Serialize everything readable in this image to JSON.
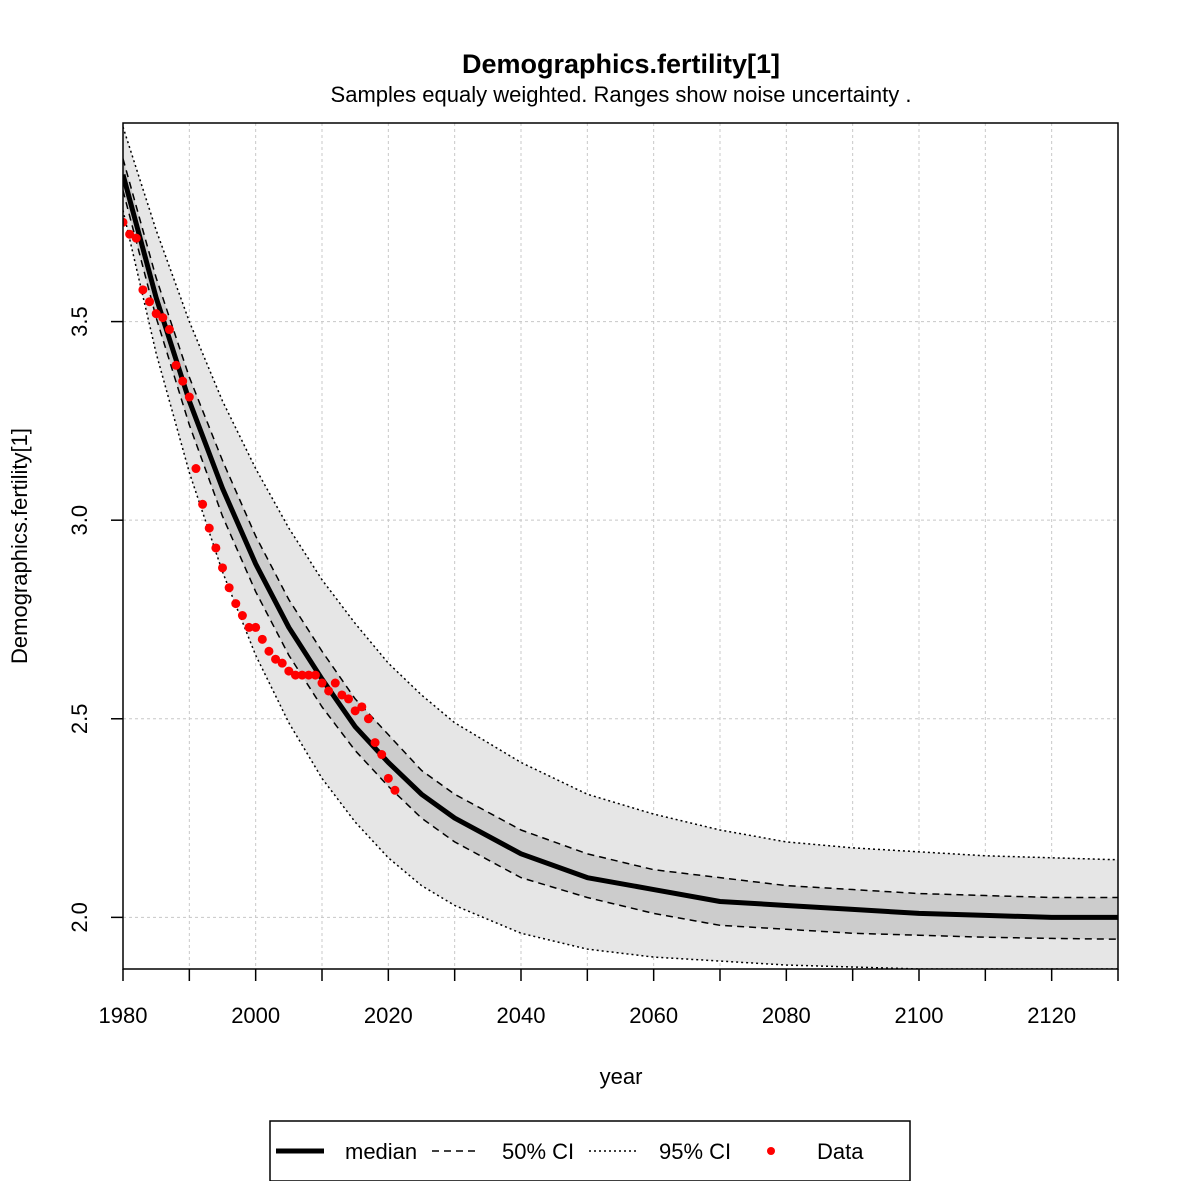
{
  "chart_data": {
    "type": "line",
    "title": "Demographics.fertility[1]",
    "subtitle": "Samples equaly weighted. Ranges show  noise uncertainty .",
    "xlabel": "year",
    "ylabel": "Demographics.fertility[1]",
    "xlim": [
      1980,
      2130
    ],
    "ylim": [
      1.87,
      4.0
    ],
    "x_ticks": [
      1980,
      2000,
      2020,
      2040,
      2060,
      2080,
      2100,
      2120
    ],
    "x_tick_labels": [
      "1980",
      "2000",
      "2020",
      "2040",
      "2060",
      "2080",
      "2100",
      "2120"
    ],
    "x_minor_ticks": [
      1990,
      2010,
      2030,
      2050,
      2070,
      2090,
      2110,
      2130
    ],
    "y_ticks": [
      2.0,
      2.5,
      3.0,
      3.5
    ],
    "y_tick_labels": [
      "2.0",
      "2.5",
      "3.0",
      "3.5"
    ],
    "grid": true,
    "legend_placement": "bottom",
    "legend": [
      {
        "label": "median",
        "style": "solid"
      },
      {
        "label": "50% CI",
        "style": "dashed"
      },
      {
        "label": "95% CI",
        "style": "dotted"
      },
      {
        "label": "Data",
        "style": "point"
      }
    ],
    "colors": {
      "median": "#000000",
      "ci50_fill": "#cccccc",
      "ci95_fill": "#e6e6e6",
      "data": "#ff0000",
      "grid": "#c8c8c8"
    },
    "model": {
      "x": [
        1980,
        1985,
        1990,
        1995,
        2000,
        2005,
        2010,
        2015,
        2020,
        2025,
        2030,
        2040,
        2050,
        2060,
        2070,
        2080,
        2090,
        2100,
        2110,
        2120,
        2130
      ],
      "median": [
        3.87,
        3.56,
        3.3,
        3.08,
        2.89,
        2.73,
        2.6,
        2.48,
        2.39,
        2.31,
        2.25,
        2.16,
        2.1,
        2.07,
        2.04,
        2.03,
        2.02,
        2.01,
        2.005,
        2.0,
        2.0
      ],
      "ci50_lower": [
        3.83,
        3.51,
        3.24,
        3.01,
        2.82,
        2.66,
        2.53,
        2.42,
        2.33,
        2.25,
        2.19,
        2.1,
        2.05,
        2.01,
        1.98,
        1.97,
        1.96,
        1.955,
        1.95,
        1.947,
        1.945
      ],
      "ci50_upper": [
        3.91,
        3.61,
        3.36,
        3.15,
        2.96,
        2.8,
        2.67,
        2.55,
        2.46,
        2.37,
        2.31,
        2.22,
        2.16,
        2.12,
        2.1,
        2.08,
        2.07,
        2.06,
        2.055,
        2.05,
        2.05
      ],
      "ci95_lower": [
        3.78,
        3.42,
        3.12,
        2.87,
        2.66,
        2.49,
        2.35,
        2.24,
        2.15,
        2.08,
        2.03,
        1.96,
        1.92,
        1.9,
        1.89,
        1.88,
        1.875,
        1.87,
        1.87,
        1.87,
        1.87
      ],
      "ci95_upper": [
        3.99,
        3.73,
        3.5,
        3.3,
        3.13,
        2.98,
        2.85,
        2.74,
        2.64,
        2.56,
        2.49,
        2.39,
        2.31,
        2.26,
        2.22,
        2.19,
        2.175,
        2.165,
        2.155,
        2.15,
        2.145
      ]
    },
    "data_points": {
      "x": [
        1980,
        1981,
        1982,
        1983,
        1984,
        1985,
        1986,
        1987,
        1988,
        1989,
        1990,
        1991,
        1992,
        1993,
        1994,
        1995,
        1996,
        1997,
        1998,
        1999,
        2000,
        2001,
        2002,
        2003,
        2004,
        2005,
        2006,
        2007,
        2008,
        2009,
        2010,
        2011,
        2012,
        2013,
        2014,
        2015,
        2016,
        2017,
        2018,
        2019,
        2020,
        2021
      ],
      "y": [
        3.75,
        3.72,
        3.71,
        3.58,
        3.55,
        3.52,
        3.51,
        3.48,
        3.39,
        3.35,
        3.31,
        3.13,
        3.04,
        2.98,
        2.93,
        2.88,
        2.83,
        2.79,
        2.76,
        2.73,
        2.73,
        2.7,
        2.67,
        2.65,
        2.64,
        2.62,
        2.61,
        2.61,
        2.61,
        2.61,
        2.59,
        2.57,
        2.59,
        2.56,
        2.55,
        2.52,
        2.53,
        2.5,
        2.44,
        2.41,
        2.35,
        2.32
      ]
    }
  }
}
